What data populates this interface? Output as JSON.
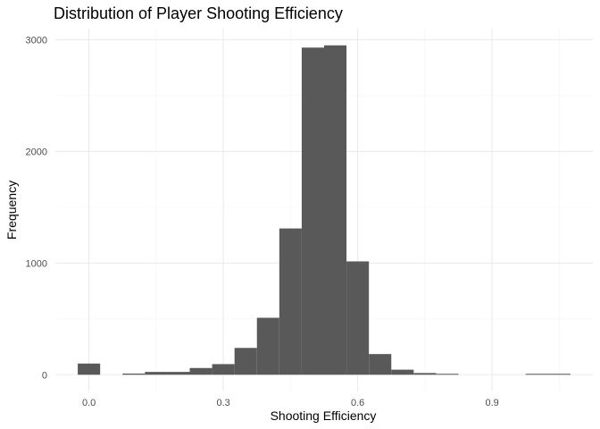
{
  "chart_data": {
    "type": "bar",
    "subtype": "histogram",
    "title": "Distribution of Player Shooting Efficiency",
    "xlabel": "Shooting Efficiency",
    "ylabel": "Frequency",
    "xlim": [
      -0.075,
      1.125
    ],
    "ylim": [
      -150,
      3100
    ],
    "x_ticks": [
      0.0,
      0.3,
      0.6,
      0.9
    ],
    "x_tick_labels": [
      "0.0",
      "0.3",
      "0.6",
      "0.9"
    ],
    "y_ticks": [
      0,
      1000,
      2000,
      3000
    ],
    "y_tick_labels": [
      "0",
      "1000",
      "2000",
      "3000"
    ],
    "bin_width": 0.05,
    "bins": [
      {
        "x": 0.0,
        "count": 100
      },
      {
        "x": 0.05,
        "count": 0
      },
      {
        "x": 0.1,
        "count": 10
      },
      {
        "x": 0.15,
        "count": 25
      },
      {
        "x": 0.2,
        "count": 25
      },
      {
        "x": 0.25,
        "count": 60
      },
      {
        "x": 0.3,
        "count": 95
      },
      {
        "x": 0.35,
        "count": 240
      },
      {
        "x": 0.4,
        "count": 510
      },
      {
        "x": 0.45,
        "count": 1310
      },
      {
        "x": 0.5,
        "count": 2930
      },
      {
        "x": 0.55,
        "count": 2950
      },
      {
        "x": 0.6,
        "count": 1015
      },
      {
        "x": 0.65,
        "count": 185
      },
      {
        "x": 0.7,
        "count": 45
      },
      {
        "x": 0.75,
        "count": 15
      },
      {
        "x": 0.8,
        "count": 8
      },
      {
        "x": 0.85,
        "count": 0
      },
      {
        "x": 0.9,
        "count": 0
      },
      {
        "x": 0.95,
        "count": 0
      },
      {
        "x": 1.0,
        "count": 8
      },
      {
        "x": 1.05,
        "count": 8
      }
    ],
    "grid": true,
    "bar_color": "#595959",
    "grid_color": "#ebebeb"
  }
}
